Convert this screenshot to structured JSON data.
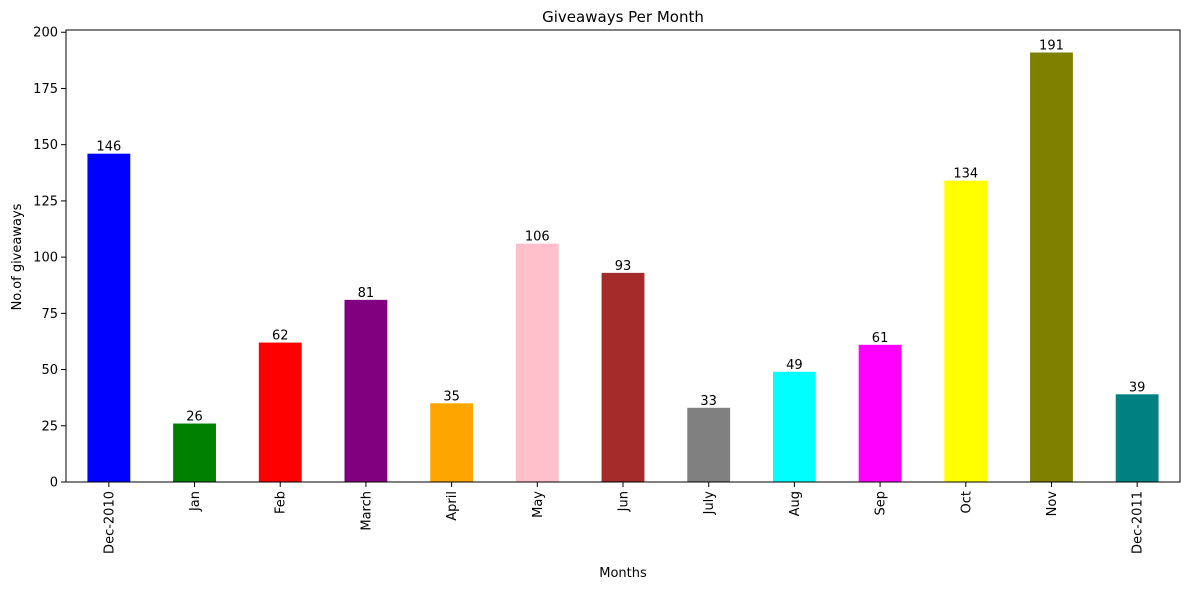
{
  "chart_data": {
    "type": "bar",
    "title": "Giveaways Per Month",
    "xlabel": "Months",
    "ylabel": "No.of giveaways",
    "categories": [
      "Dec-2010",
      "Jan",
      "Feb",
      "March",
      "April",
      "May",
      "Jun",
      "July",
      "Aug",
      "Sep",
      "Oct",
      "Nov",
      "Dec-2011"
    ],
    "values": [
      146,
      26,
      62,
      81,
      35,
      106,
      93,
      33,
      49,
      61,
      134,
      191,
      39
    ],
    "colors": [
      "#0000ff",
      "#008000",
      "#ff0000",
      "#800080",
      "#ffa500",
      "#ffc0cb",
      "#a52a2a",
      "#808080",
      "#00ffff",
      "#ff00ff",
      "#ffff00",
      "#808000",
      "#008080"
    ],
    "ylim": [
      0,
      201
    ],
    "yticks": [
      0,
      25,
      50,
      75,
      100,
      125,
      150,
      175,
      200
    ],
    "grid": false,
    "legend": "none"
  }
}
